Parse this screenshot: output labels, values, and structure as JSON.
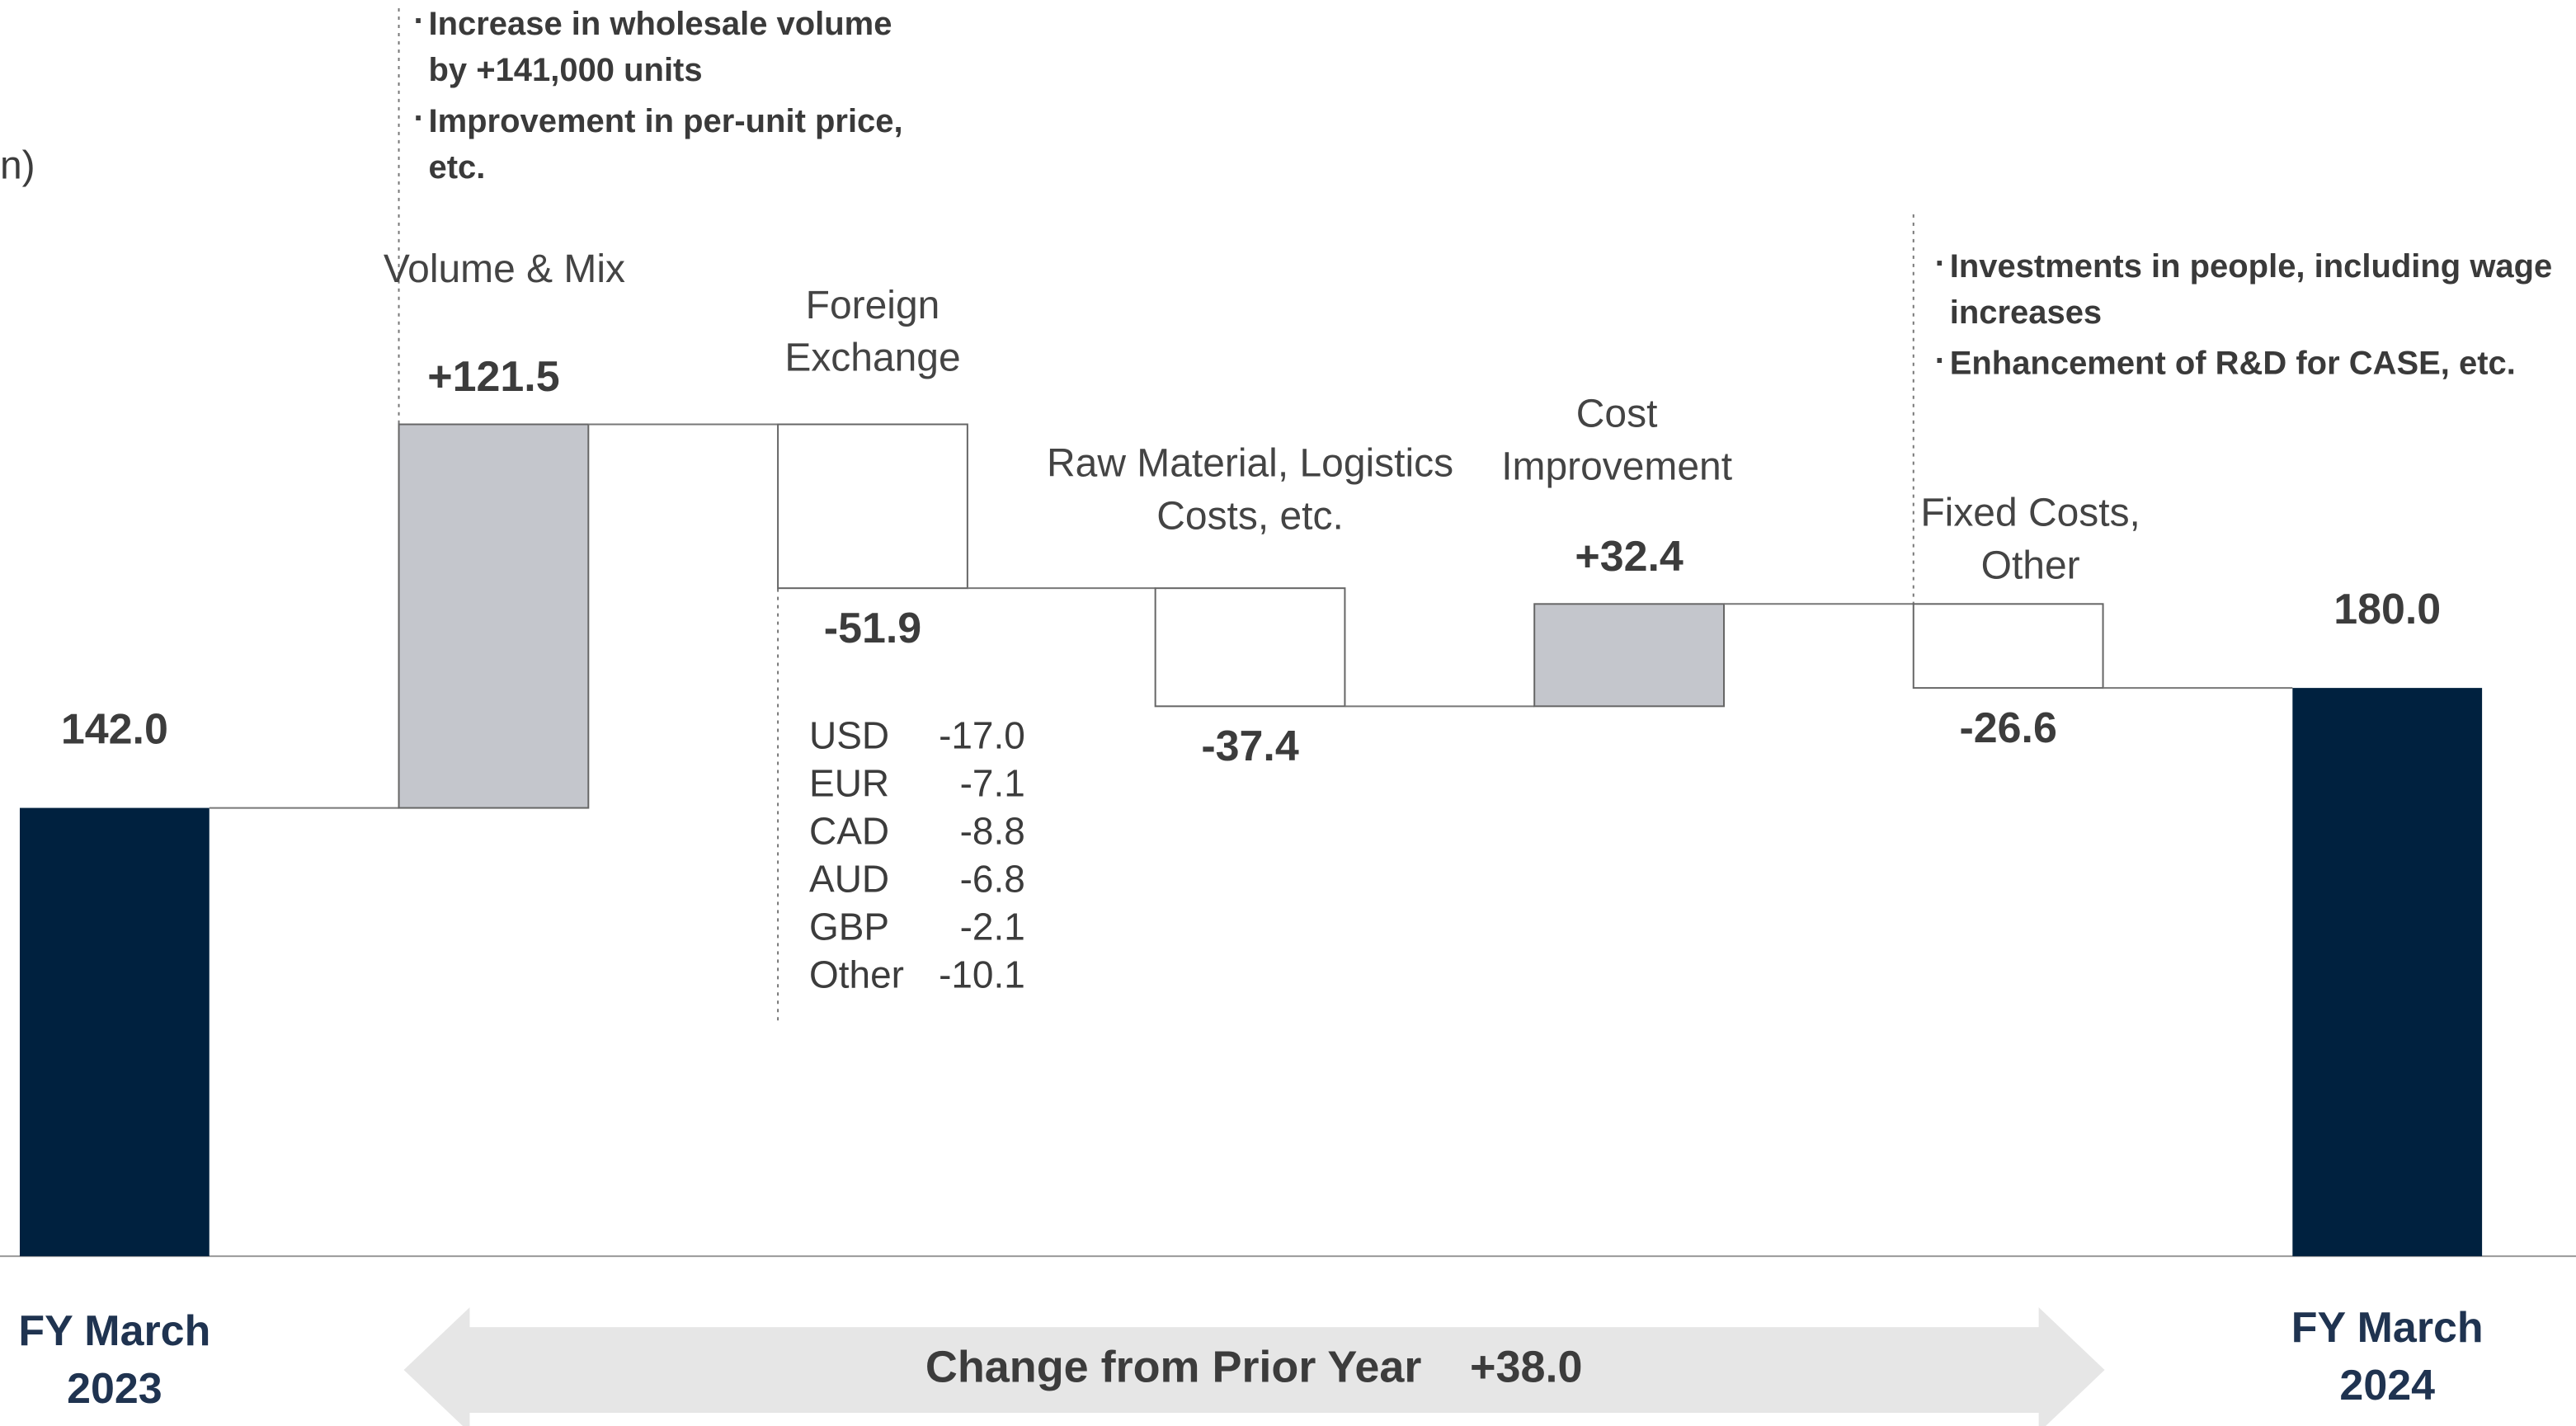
{
  "chart_data": {
    "type": "waterfall",
    "unit_label": "n)",
    "categories": [
      "FY March 2023",
      "Volume & Mix",
      "Foreign Exchange",
      "Raw Material, Logistics Costs, etc.",
      "Cost Improvement",
      "Fixed Costs, Other",
      "FY March 2024"
    ],
    "measure": [
      "absolute",
      "relative",
      "relative",
      "relative",
      "relative",
      "relative",
      "absolute"
    ],
    "values": [
      142.0,
      121.5,
      -51.9,
      -37.4,
      32.4,
      -26.6,
      180.0
    ],
    "value_labels": [
      "142.0",
      "+121.5",
      "-51.9",
      "-37.4",
      "+32.4",
      "-26.6",
      "180.0"
    ],
    "colors": {
      "total": "#00213f",
      "increase": "#c4c6cc",
      "decrease": "#ffffff"
    },
    "volume_notes": [
      "Increase in wholesale volume by +141,000 units",
      "Improvement in per-unit price, etc."
    ],
    "fixed_cost_notes": [
      "Investments in people, including wage increases",
      "Enhancement of R&D for CASE, etc."
    ],
    "fx_breakdown": {
      "currencies": [
        "USD",
        "EUR",
        "CAD",
        "AUD",
        "GBP",
        "Other"
      ],
      "values": [
        -17.0,
        -7.1,
        -8.8,
        -6.8,
        -2.1,
        -10.1
      ],
      "value_labels": [
        "-17.0",
        "-7.1",
        "-8.8",
        "-6.8",
        "-2.1",
        "-10.1"
      ]
    },
    "change": {
      "label": "Change from Prior Year",
      "value": 38.0,
      "value_label": "+38.0"
    }
  }
}
